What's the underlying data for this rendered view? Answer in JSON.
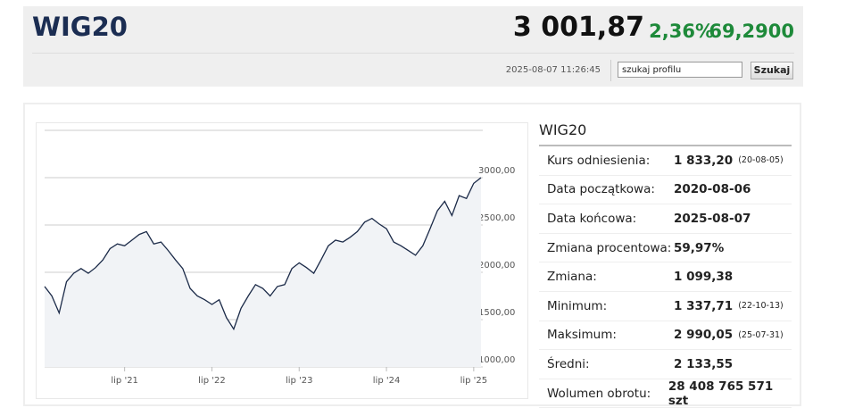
{
  "header": {
    "title": "WIG20",
    "price": "3 001,87",
    "change_pct": "2,36%",
    "change": "69,2900",
    "datetime": "2025-08-07 11:26:45"
  },
  "search": {
    "input": "szukaj profilu",
    "button": "Szukaj"
  },
  "chart_data": {
    "type": "line",
    "color": "#1b2a48",
    "grid": true,
    "x": [
      "2020-08",
      "2020-09",
      "2020-10",
      "2020-11",
      "2020-12",
      "2021-01",
      "2021-02",
      "2021-03",
      "2021-04",
      "2021-05",
      "2021-06",
      "2021-07",
      "2021-08",
      "2021-09",
      "2021-10",
      "2021-11",
      "2021-12",
      "2022-01",
      "2022-02",
      "2022-03",
      "2022-04",
      "2022-05",
      "2022-06",
      "2022-07",
      "2022-08",
      "2022-09",
      "2022-10",
      "2022-11",
      "2022-12",
      "2023-01",
      "2023-02",
      "2023-03",
      "2023-04",
      "2023-05",
      "2023-06",
      "2023-07",
      "2023-08",
      "2023-09",
      "2023-10",
      "2023-11",
      "2023-12",
      "2024-01",
      "2024-02",
      "2024-03",
      "2024-04",
      "2024-05",
      "2024-06",
      "2024-07",
      "2024-08",
      "2024-09",
      "2024-10",
      "2024-11",
      "2024-12",
      "2025-01",
      "2025-02",
      "2025-03",
      "2025-04",
      "2025-05",
      "2025-06",
      "2025-07",
      "2025-08"
    ],
    "values": [
      1850,
      1750,
      1570,
      1900,
      1990,
      2040,
      1990,
      2050,
      2130,
      2250,
      2300,
      2280,
      2340,
      2400,
      2430,
      2300,
      2320,
      2230,
      2130,
      2040,
      1830,
      1750,
      1710,
      1660,
      1710,
      1520,
      1400,
      1620,
      1750,
      1870,
      1830,
      1750,
      1850,
      1870,
      2040,
      2100,
      2050,
      1990,
      2130,
      2280,
      2340,
      2320,
      2370,
      2430,
      2530,
      2570,
      2510,
      2460,
      2320,
      2280,
      2230,
      2180,
      2280,
      2460,
      2650,
      2750,
      2600,
      2810,
      2780,
      2940,
      3000
    ],
    "xlim": [
      "2020-08",
      "2025-08"
    ],
    "xticks": [
      {
        "value": "2021-07",
        "label": "lip '21"
      },
      {
        "value": "2022-07",
        "label": "lip '22"
      },
      {
        "value": "2023-07",
        "label": "lip '23"
      },
      {
        "value": "2024-07",
        "label": "lip '24"
      },
      {
        "value": "2025-07",
        "label": "lip '25"
      }
    ],
    "ylim": [
      1000,
      3500
    ],
    "yticks": [
      {
        "value": 1000,
        "label": "1000,00"
      },
      {
        "value": 1500,
        "label": "1500,00"
      },
      {
        "value": 2000,
        "label": "2000,00"
      },
      {
        "value": 2500,
        "label": "2500,00"
      },
      {
        "value": 3000,
        "label": "3000,00"
      }
    ]
  },
  "table": {
    "title": "WIG20",
    "rows": [
      {
        "label": "Kurs odniesienia:",
        "value": "1 833,20",
        "note": "(20-08-05)"
      },
      {
        "label": "Data początkowa:",
        "value": "2020-08-06"
      },
      {
        "label": "Data końcowa:",
        "value": "2025-08-07"
      },
      {
        "label": "Zmiana procentowa:",
        "value": "59,97%"
      },
      {
        "label": "Zmiana:",
        "value": "1 099,38"
      },
      {
        "label": "Minimum:",
        "value": "1 337,71",
        "note": "(22-10-13)"
      },
      {
        "label": "Maksimum:",
        "value": "2 990,05",
        "note": "(25-07-31)"
      },
      {
        "label": "Średni:",
        "value": "2 133,55"
      },
      {
        "label": "Wolumen obrotu:",
        "value": "28 408 765 571 szt"
      }
    ]
  }
}
